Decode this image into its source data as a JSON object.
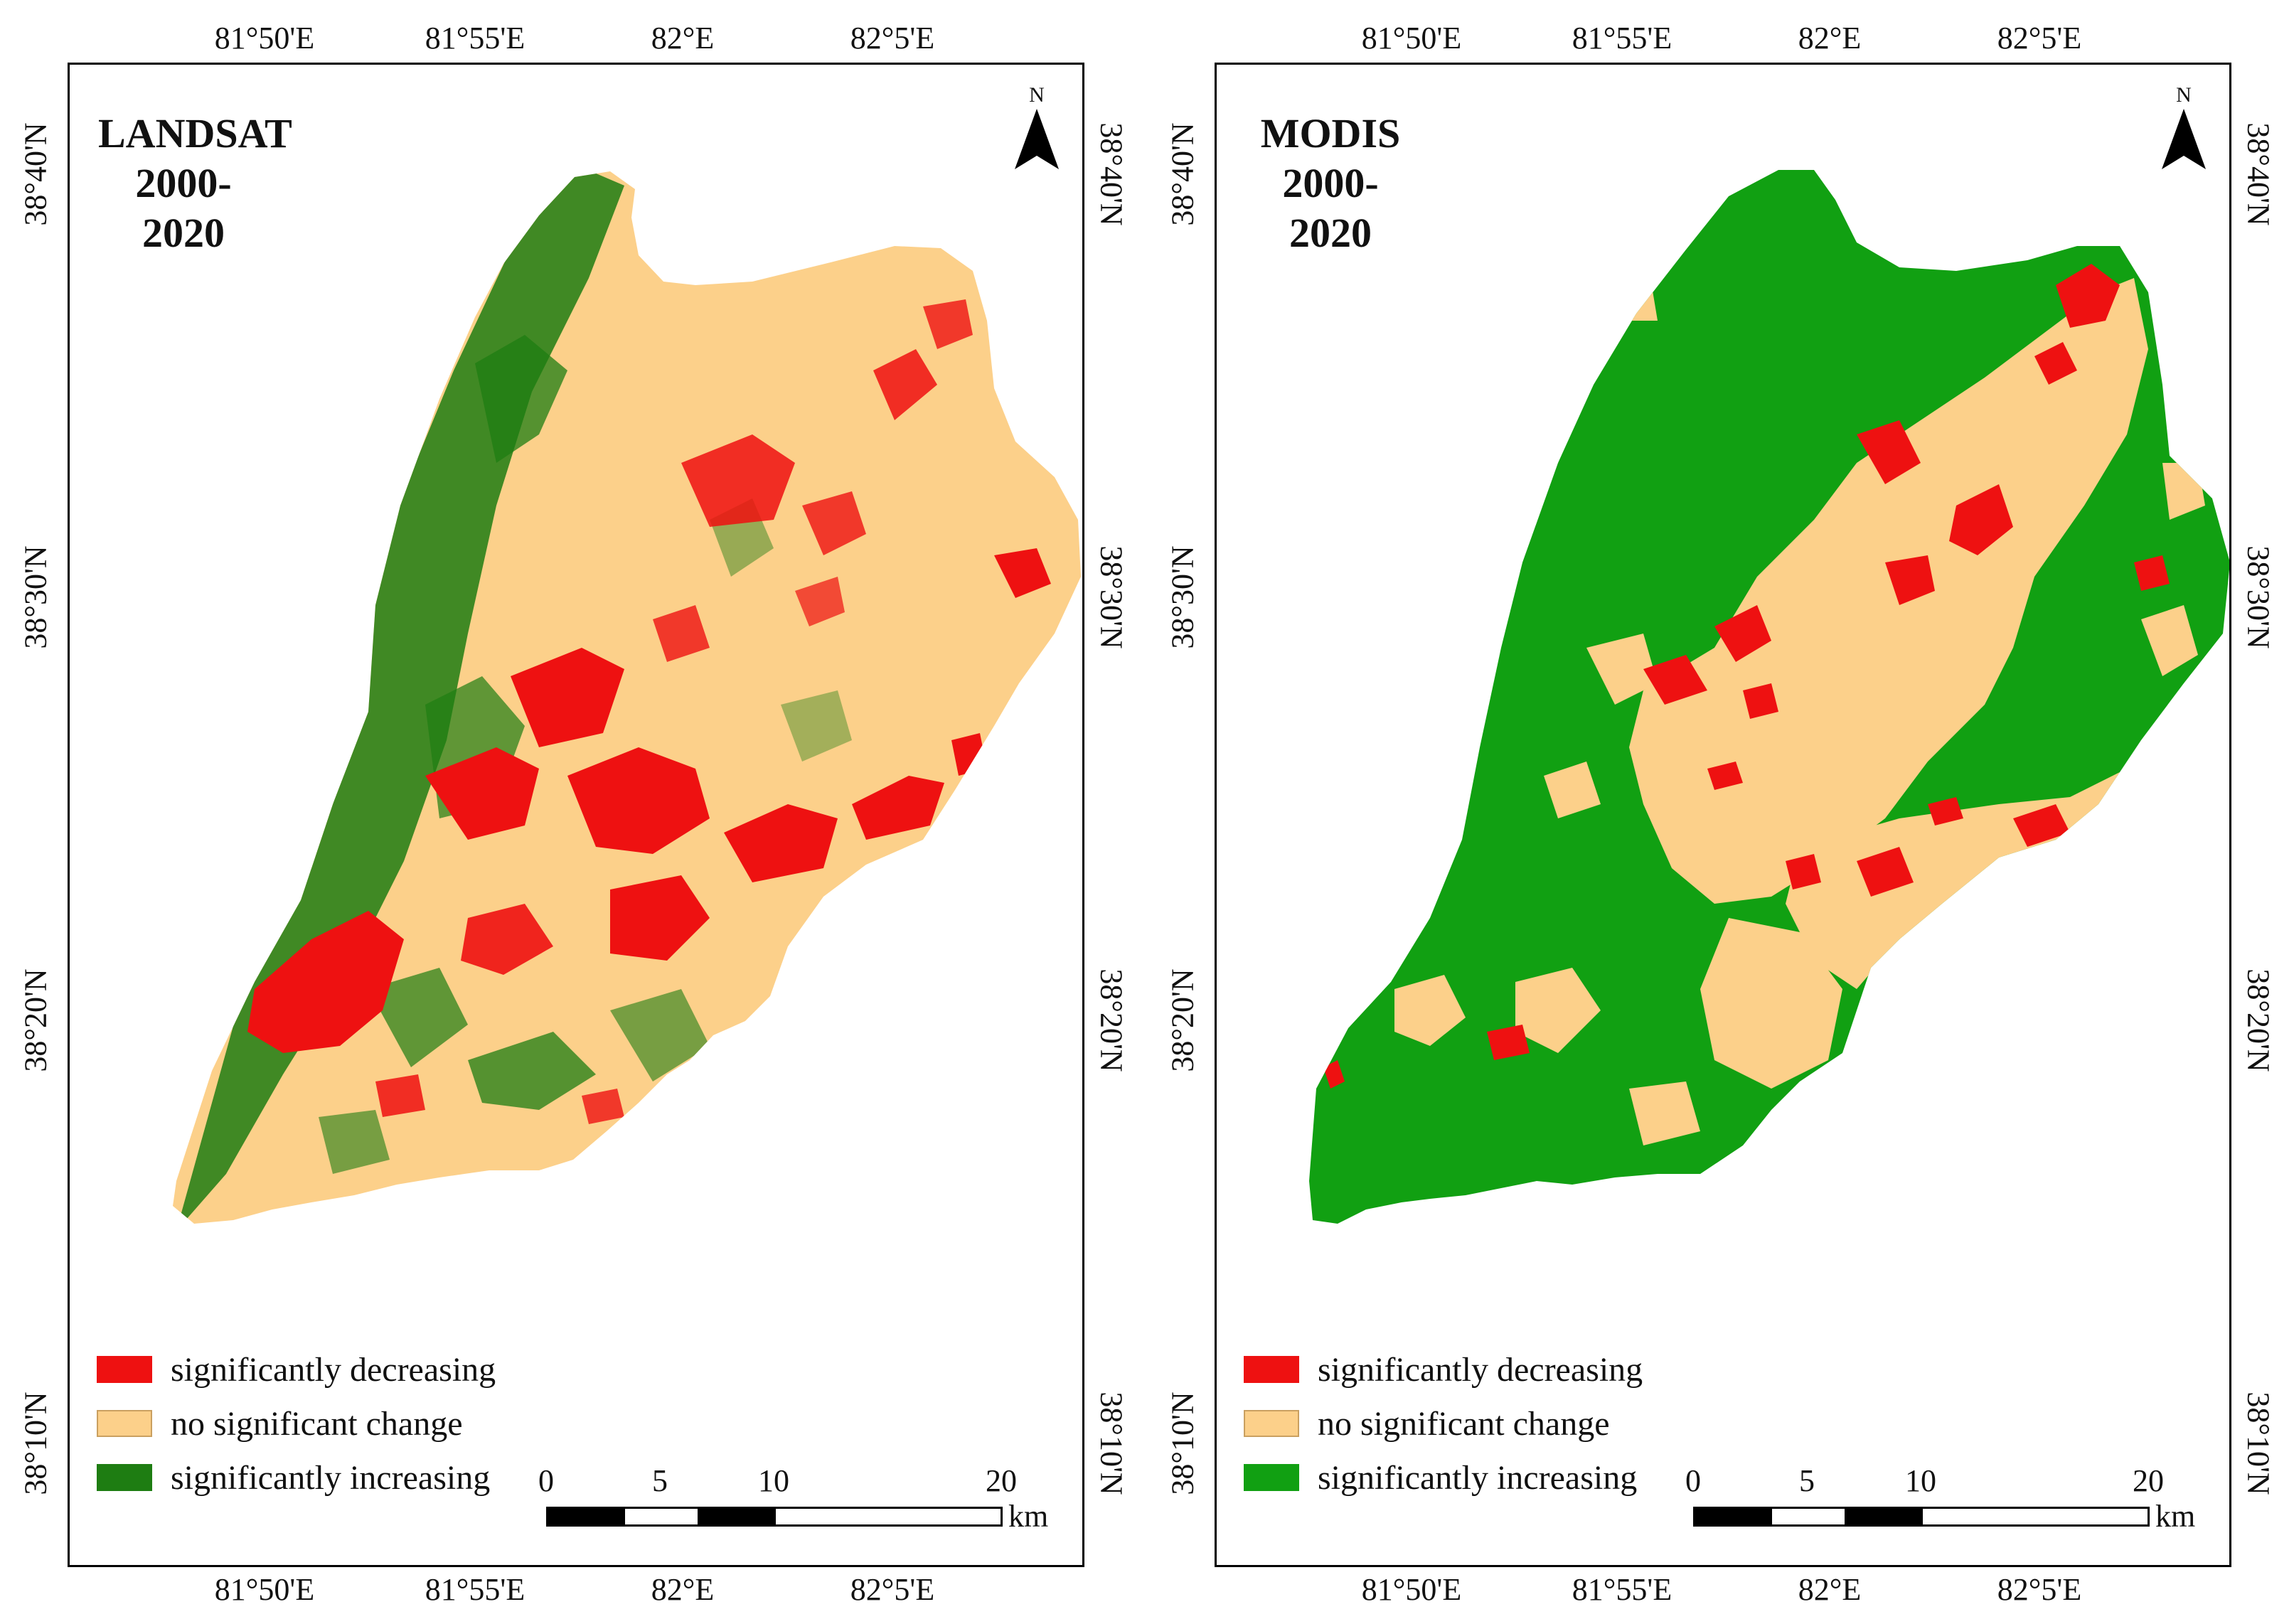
{
  "figure": {
    "panels": [
      {
        "title_line1": "LANDSAT",
        "title_line2": "2000-2020",
        "north_label": "N",
        "lon_ticks": [
          "81°50'E",
          "81°55'E",
          "82°E",
          "82°5'E"
        ],
        "lat_ticks": [
          "38°40'N",
          "38°30'N",
          "38°20'N",
          "38°10'N"
        ],
        "legend": [
          {
            "label": "significantly decreasing",
            "color": "#ee1111"
          },
          {
            "label": "no significant change",
            "color": "#fcd08a"
          },
          {
            "label": "significantly increasing",
            "color": "#1e7d12"
          }
        ],
        "dominant_color": "#fcd08a",
        "dominant_class": "no significant change",
        "scale": {
          "ticks": [
            "0",
            "5",
            "10",
            "20"
          ],
          "unit": "km"
        }
      },
      {
        "title_line1": "MODIS",
        "title_line2": "2000-2020",
        "north_label": "N",
        "lon_ticks": [
          "81°50'E",
          "81°55'E",
          "82°E",
          "82°5'E"
        ],
        "lat_ticks": [
          "38°40'N",
          "38°30'N",
          "38°20'N",
          "38°10'N"
        ],
        "legend": [
          {
            "label": "significantly decreasing",
            "color": "#ee1111"
          },
          {
            "label": "no significant change",
            "color": "#fcd08a"
          },
          {
            "label": "significantly increasing",
            "color": "#11a012"
          }
        ],
        "dominant_color": "#11a012",
        "dominant_class": "significantly increasing",
        "scale": {
          "ticks": [
            "0",
            "5",
            "10",
            "20"
          ],
          "unit": "km"
        }
      }
    ]
  }
}
